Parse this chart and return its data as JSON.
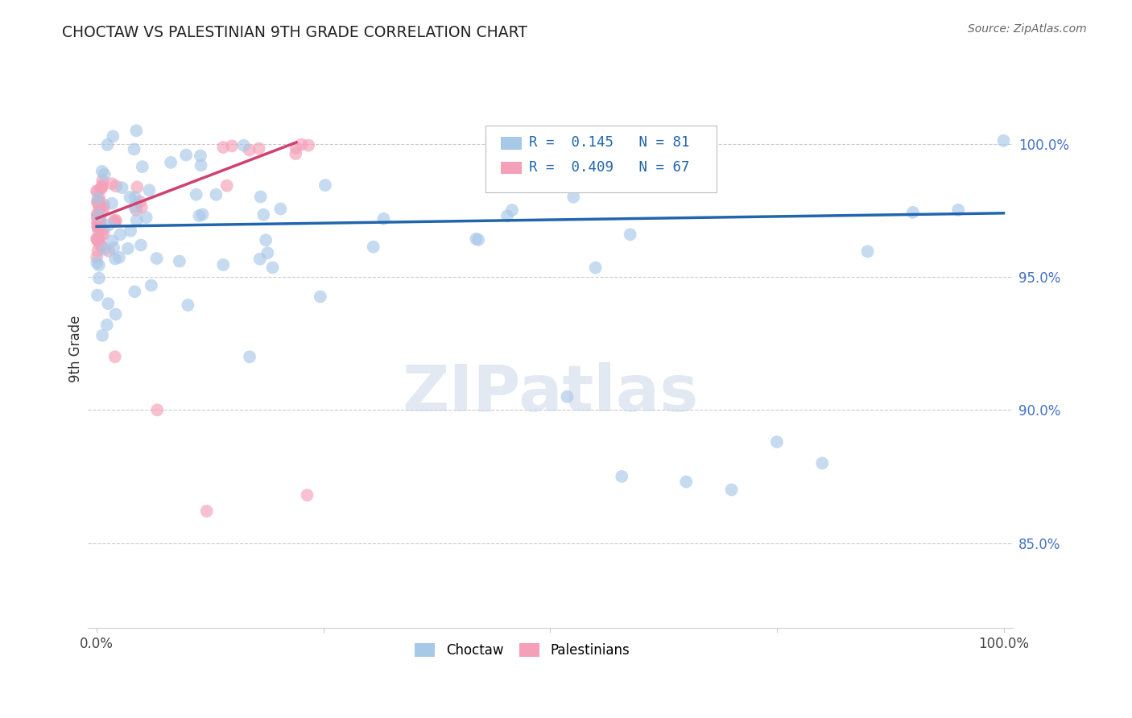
{
  "title": "CHOCTAW VS PALESTINIAN 9TH GRADE CORRELATION CHART",
  "source": "Source: ZipAtlas.com",
  "ylabel": "9th Grade",
  "legend_label1": "Choctaw",
  "legend_label2": "Palestinians",
  "R1": 0.145,
  "N1": 81,
  "R2": 0.409,
  "N2": 67,
  "blue_color": "#a8c8e8",
  "pink_color": "#f4a0b8",
  "blue_line_color": "#2166ac",
  "pink_line_color": "#d04070",
  "watermark": "ZIPatlas",
  "yticks": [
    0.85,
    0.9,
    0.95,
    1.0
  ],
  "ytick_labels": [
    "85.0%",
    "90.0%",
    "95.0%",
    "100.0%"
  ],
  "ylim_low": 0.818,
  "ylim_high": 1.028,
  "xlim_low": -0.01,
  "xlim_high": 1.01
}
